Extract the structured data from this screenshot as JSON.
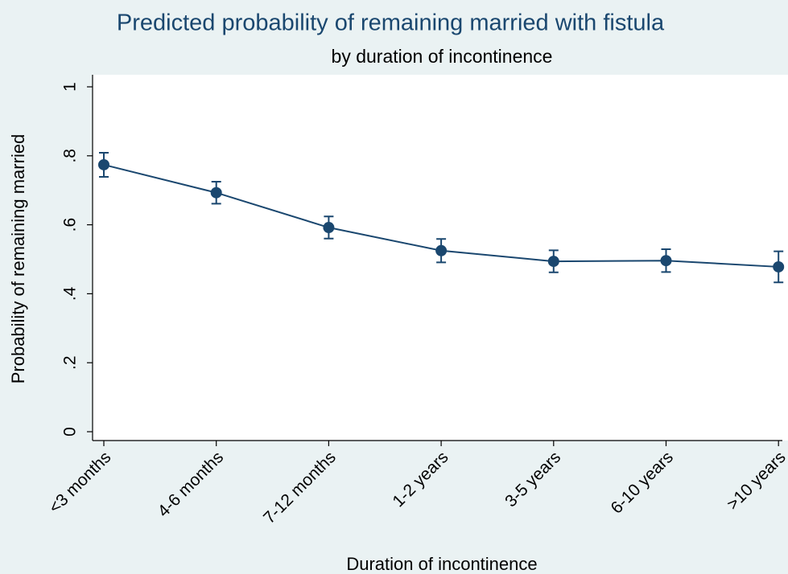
{
  "chart_data": {
    "type": "line",
    "title": "Predicted probability of remaining married with fistula",
    "subtitle": "by duration of incontinence",
    "x_label": "Duration of incontinence",
    "y_label": "Probability of remaining married",
    "categories": [
      "<3 months",
      "4-6 months",
      "7-12 months",
      "1-2 years",
      "3-5 years",
      "6-10 years",
      ">10 years"
    ],
    "values": [
      0.774,
      0.693,
      0.592,
      0.525,
      0.494,
      0.496,
      0.478
    ],
    "errors": [
      0.035,
      0.032,
      0.032,
      0.034,
      0.032,
      0.033,
      0.045
    ],
    "color": "#1a476f",
    "ylim": [
      0,
      1
    ],
    "yticks": [
      0,
      {
        "value": 0.2,
        "label": ".2"
      },
      {
        "value": 0.4,
        "label": ".4"
      },
      {
        "value": 0.6,
        "label": ".6"
      },
      {
        "value": 0.8,
        "label": ".8"
      },
      1
    ],
    "grid": false
  }
}
